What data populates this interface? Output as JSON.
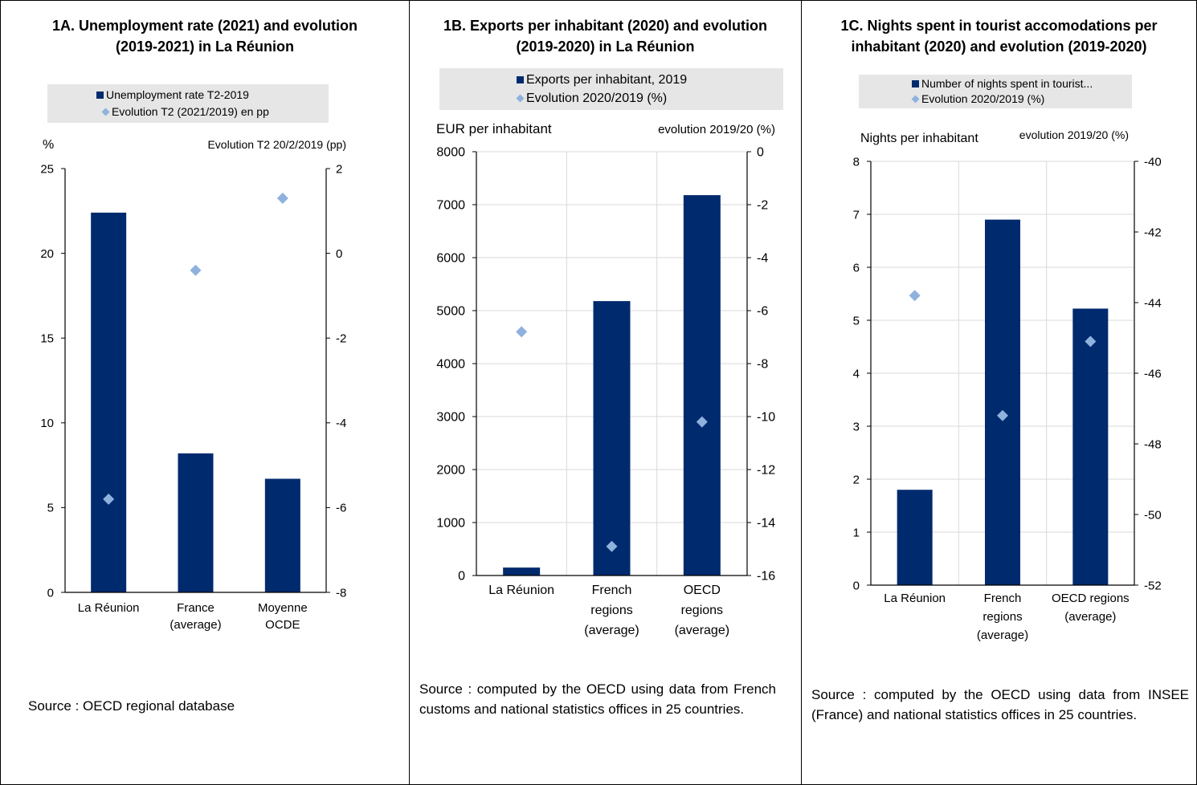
{
  "panels": {
    "a": {
      "title_line1": "1A. Unemployment rate (2021) and evolution",
      "title_line2": "(2019-2021) in La Réunion",
      "source": "Source : OECD regional database"
    },
    "b": {
      "title_line1": "1B. Exports per inhabitant (2020) and evolution",
      "title_line2": "(2019-2020) in La Réunion",
      "source": "Source : computed by the OECD using data from French customs and national statistics offices in 25 countries."
    },
    "c": {
      "title_line1": "1C. Nights spent in tourist accomodations per",
      "title_line2": "inhabitant (2020) and evolution (2019-2020)",
      "source": "Source : computed by the OECD using data from INSEE (France) and national statistics offices in 25 countries."
    }
  },
  "colors": {
    "bar": "#002a6e",
    "marker": "#8fb1de",
    "legend_bg": "#e6e6e6",
    "grid": "#d9d9d9"
  },
  "chart_data": [
    {
      "type": "bar",
      "title": "1A. Unemployment rate (2021) and evolution (2019-2021) in La Réunion",
      "categories": [
        [
          "La Réunion"
        ],
        [
          "France",
          "(average)"
        ],
        [
          "Moyenne",
          "OCDE"
        ]
      ],
      "ylabel_left": "%",
      "ylabel_right": "Evolution T2 20/2/2019 (pp)",
      "ylim_left": [
        0,
        25
      ],
      "yticks_left": [
        0,
        5,
        10,
        15,
        20,
        25
      ],
      "ylim_right": [
        -8,
        2
      ],
      "yticks_right": [
        -8,
        -6,
        -4,
        -2,
        0,
        2
      ],
      "grid": false,
      "legend_position": "top",
      "series": [
        {
          "name": "Unemployment rate T2-2019",
          "kind": "bar",
          "axis": "left",
          "values": [
            22.4,
            8.2,
            6.7
          ]
        },
        {
          "name": "Evolution T2 (2021/2019) en pp",
          "kind": "marker",
          "axis": "right",
          "values": [
            -5.8,
            -0.4,
            1.3
          ]
        }
      ]
    },
    {
      "type": "bar",
      "title": "1B. Exports per inhabitant (2020) and evolution (2019-2020) in La Réunion",
      "categories": [
        [
          "La Réunion"
        ],
        [
          "French",
          "regions",
          "(average)"
        ],
        [
          "OECD",
          "regions",
          "(average)"
        ]
      ],
      "ylabel_left": "EUR per inhabitant",
      "ylabel_right": "evolution 2019/20 (%)",
      "ylim_left": [
        0,
        8000
      ],
      "yticks_left": [
        0,
        1000,
        2000,
        3000,
        4000,
        5000,
        6000,
        7000,
        8000
      ],
      "ylim_right": [
        -16,
        0
      ],
      "yticks_right": [
        -16,
        -14,
        -12,
        -10,
        -8,
        -6,
        -4,
        -2,
        0
      ],
      "grid": true,
      "legend_position": "top",
      "series": [
        {
          "name": "Exports per inhabitant, 2019",
          "kind": "bar",
          "axis": "left",
          "values": [
            150,
            5180,
            7180
          ]
        },
        {
          "name": "Evolution 2020/2019 (%)",
          "kind": "marker",
          "axis": "right",
          "values": [
            -6.8,
            -14.9,
            -10.2
          ]
        }
      ]
    },
    {
      "type": "bar",
      "title": "1C. Nights spent in tourist accomodations per inhabitant (2020) and evolution (2019-2020)",
      "categories": [
        [
          "La Réunion"
        ],
        [
          "French",
          "regions",
          "(average)"
        ],
        [
          "OECD regions",
          "(average)"
        ]
      ],
      "ylabel_left": "Nights per inhabitant",
      "ylabel_right": "evolution 2019/20 (%)",
      "ylim_left": [
        0,
        8
      ],
      "yticks_left": [
        0,
        1,
        2,
        3,
        4,
        5,
        6,
        7,
        8
      ],
      "ylim_right": [
        -52,
        -40
      ],
      "yticks_right": [
        -52,
        -50,
        -48,
        -46,
        -44,
        -42,
        -40
      ],
      "grid": true,
      "legend_position": "top",
      "series": [
        {
          "name": "Number of nights spent in tourist...",
          "kind": "bar",
          "axis": "left",
          "values": [
            1.8,
            6.9,
            5.22
          ]
        },
        {
          "name": "Evolution 2020/2019 (%)",
          "kind": "marker",
          "axis": "right",
          "values": [
            -43.8,
            -47.2,
            -45.1
          ]
        }
      ]
    }
  ]
}
